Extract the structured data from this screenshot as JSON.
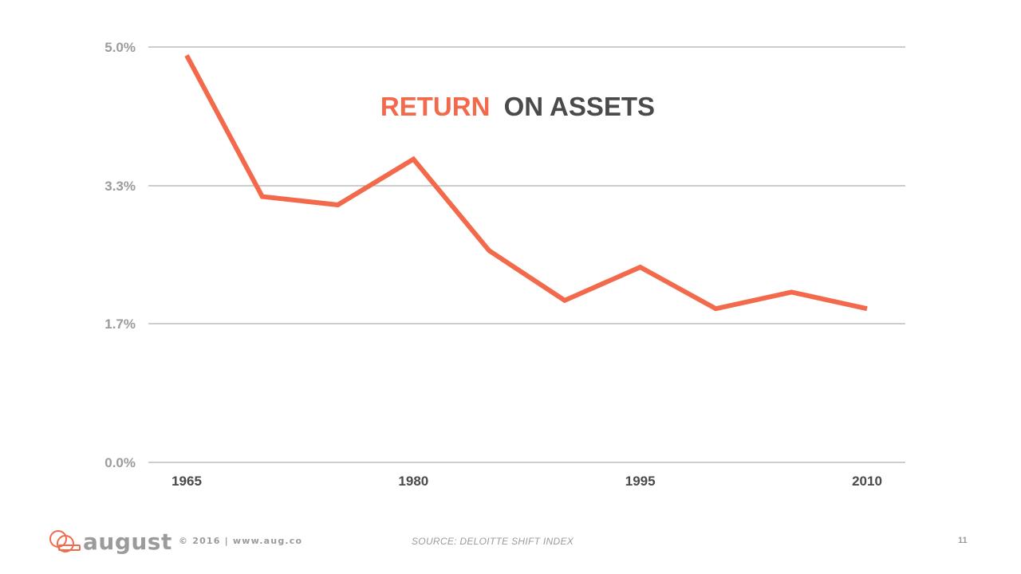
{
  "chart_data": {
    "type": "line",
    "title_highlight": "RETURN",
    "title_rest": "ON ASSETS",
    "x": [
      1965,
      1970,
      1975,
      1980,
      1985,
      1990,
      1995,
      2000,
      2005,
      2010
    ],
    "series": [
      {
        "values": [
          4.9,
          3.2,
          3.1,
          3.65,
          2.55,
          1.95,
          2.35,
          1.85,
          2.05,
          1.85
        ]
      }
    ],
    "xticks": [
      "1965",
      "1980",
      "1995",
      "2010"
    ],
    "yticks": [
      "5.0%",
      "3.3%",
      "1.7%",
      "0.0%"
    ],
    "ytick_values": [
      5.0,
      3.33,
      1.67,
      0.0
    ],
    "ylim": [
      0,
      5.0
    ],
    "xlim": [
      1965,
      2010
    ],
    "grid": true,
    "colors": {
      "line": "#f26a4b",
      "title_highlight": "#f26a4b",
      "title_rest": "#4a4a4a",
      "grid": "#9b9b9b"
    }
  },
  "footer": {
    "logo_text": "august",
    "copyright": "© 2016 | www.aug.co",
    "source": "SOURCE: DELOITTE SHIFT INDEX",
    "page_number": "11"
  }
}
